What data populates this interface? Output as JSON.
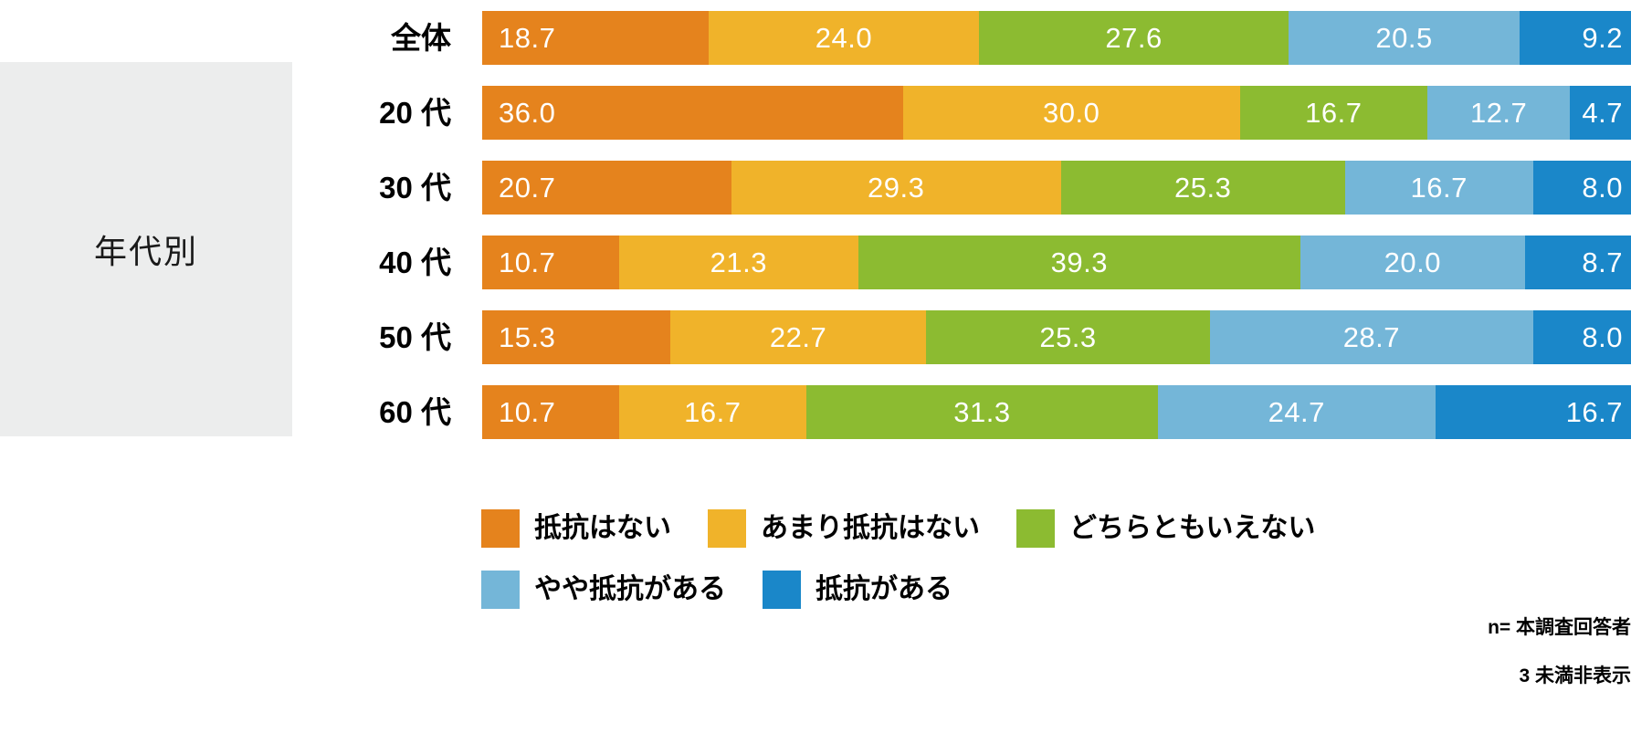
{
  "panel": {
    "label": "年代別"
  },
  "notes": [
    "n= 本調査回答者",
    "3 未満非表示"
  ],
  "chart_data": {
    "type": "bar",
    "variant": "100%-stacked-horizontal",
    "categories": [
      "全体",
      "20 代",
      "30 代",
      "40 代",
      "50 代",
      "60 代"
    ],
    "series": [
      {
        "name": "抵抗はない",
        "color": "#E5831D",
        "values": [
          18.7,
          36.0,
          20.7,
          10.7,
          15.3,
          10.7
        ]
      },
      {
        "name": "あまり抵抗はない",
        "color": "#F0B32A",
        "values": [
          24.0,
          30.0,
          29.3,
          21.3,
          22.7,
          16.7
        ]
      },
      {
        "name": "どちらともいえない",
        "color": "#8CBB31",
        "values": [
          27.6,
          16.7,
          25.3,
          39.3,
          25.3,
          31.3
        ]
      },
      {
        "name": "やや抵抗がある",
        "color": "#74B6D8",
        "values": [
          20.5,
          12.7,
          16.7,
          20.0,
          28.7,
          24.7
        ]
      },
      {
        "name": "抵抗がある",
        "color": "#1A87C9",
        "values": [
          9.2,
          4.7,
          8.0,
          8.7,
          8.0,
          16.7
        ]
      }
    ],
    "xlim": [
      0,
      100
    ],
    "value_labels": "inside, one decimal, white",
    "grid": false,
    "legend_position": "bottom",
    "legend_rows": [
      [
        0,
        1,
        2
      ],
      [
        3,
        4
      ]
    ],
    "value_label_color": "#ffffff",
    "panel_background": "#ECEDED"
  }
}
